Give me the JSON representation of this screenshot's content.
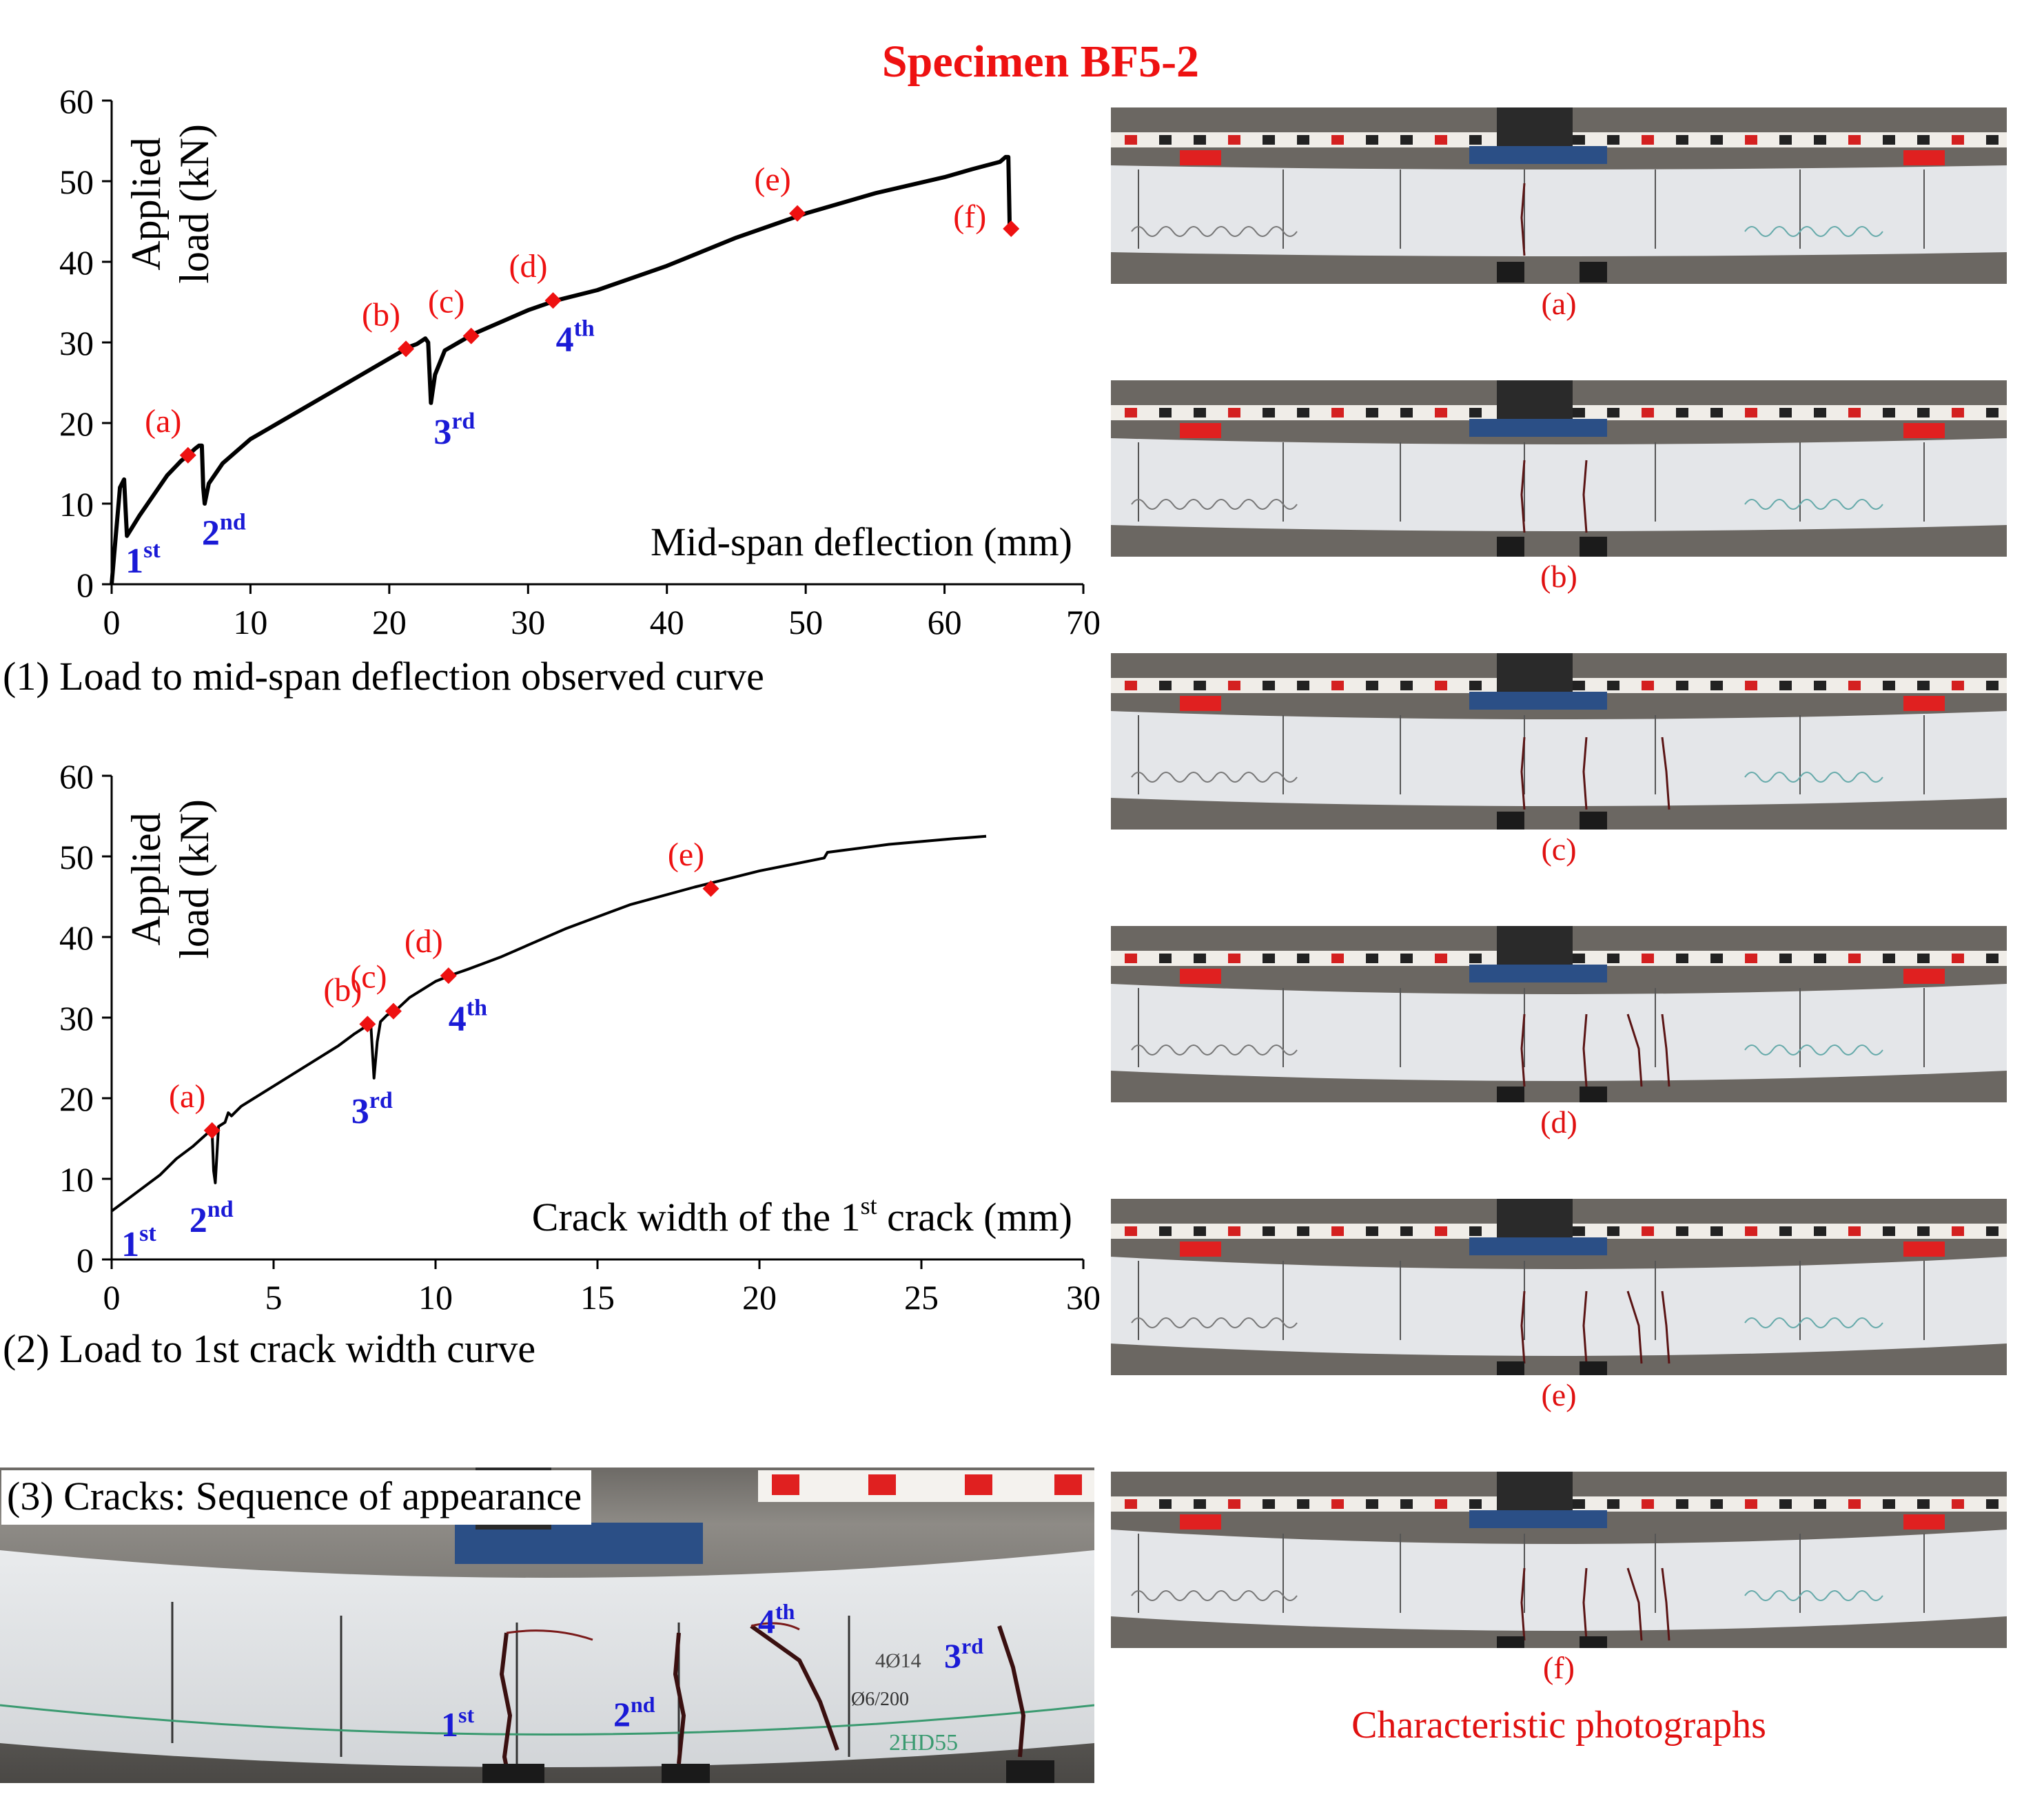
{
  "title": "Specimen BF5-2",
  "colors": {
    "title": "#ee1111",
    "marker": "#ee1111",
    "crack_label": "#1a1ad6",
    "curve": "#000000"
  },
  "chart_data": [
    {
      "type": "line",
      "id": "chart1",
      "caption": "(1) Load to mid-span deflection observed curve",
      "xlabel": "Mid-span deflection (mm)",
      "ylabel": [
        "Applied",
        "load (kN)"
      ],
      "xlim": [
        0,
        70
      ],
      "ylim": [
        0,
        60
      ],
      "xticks": [
        0,
        10,
        20,
        30,
        40,
        50,
        60,
        70
      ],
      "yticks": [
        0,
        10,
        20,
        30,
        40,
        50,
        60
      ],
      "grid": false,
      "series": [
        {
          "x": [
            0,
            0.3,
            0.6,
            0.9,
            1.0,
            1.1,
            2,
            3,
            4,
            5,
            5.5,
            6,
            6.3,
            6.5,
            6.6,
            6.7,
            7,
            8,
            10,
            12,
            14,
            16,
            18,
            20,
            21,
            21.5,
            22,
            22.6,
            22.8,
            23.0,
            23.3,
            24,
            25,
            26,
            28,
            30,
            32,
            35,
            40,
            45,
            50,
            55,
            60,
            62,
            64,
            64.4,
            64.6,
            64.7
          ],
          "y": [
            0,
            6,
            12,
            13,
            9.5,
            6,
            8.5,
            11,
            13.5,
            15.3,
            16,
            16.8,
            17.2,
            17.2,
            12,
            10,
            12.5,
            15,
            18,
            20,
            22,
            24,
            26,
            28,
            29,
            29.5,
            29.8,
            30.5,
            30,
            22.5,
            26,
            29,
            30,
            31,
            32.5,
            34,
            35.2,
            36.5,
            39.5,
            43,
            46,
            48.5,
            50.5,
            51.5,
            52.4,
            53,
            53,
            44
          ]
        }
      ],
      "markers": [
        {
          "label": "(a)",
          "x": 5.5,
          "y": 16
        },
        {
          "label": "(b)",
          "x": 21.2,
          "y": 29.2
        },
        {
          "label": "(c)",
          "x": 25.9,
          "y": 30.8
        },
        {
          "label": "(d)",
          "x": 31.8,
          "y": 35.2
        },
        {
          "label": "(e)",
          "x": 49.4,
          "y": 46
        },
        {
          "label": "(f)",
          "x": 64.8,
          "y": 44.1
        }
      ],
      "crack_labels": [
        {
          "num": "1",
          "sup": "st",
          "x": 1.0,
          "y": 4
        },
        {
          "num": "2",
          "sup": "nd",
          "x": 6.5,
          "y": 7.5
        },
        {
          "num": "3",
          "sup": "rd",
          "x": 23.2,
          "y": 20
        },
        {
          "num": "4",
          "sup": "th",
          "x": 32.0,
          "y": 31.5
        }
      ]
    },
    {
      "type": "line",
      "id": "chart2",
      "caption": "(2) Load to 1st crack width curve",
      "xlabel_pre": "Crack width of the 1",
      "xlabel_sup": "st",
      "xlabel_post": " crack (mm)",
      "ylabel": [
        "Applied",
        "load (kN)"
      ],
      "xlim": [
        0,
        30
      ],
      "ylim": [
        0,
        60
      ],
      "xticks": [
        0,
        5,
        10,
        15,
        20,
        25,
        30
      ],
      "yticks": [
        0,
        10,
        20,
        30,
        40,
        50,
        60
      ],
      "grid": false,
      "series": [
        {
          "x": [
            0,
            0.5,
            1,
            1.5,
            2,
            2.5,
            3.0,
            3.1,
            3.15,
            3.2,
            3.3,
            3.5,
            3.6,
            3.7,
            4,
            5,
            6,
            7,
            7.5,
            8.0,
            8.1,
            8.2,
            8.3,
            8.5,
            8.8,
            9.2,
            10,
            10.5,
            11,
            12,
            14,
            16,
            18,
            20,
            22,
            22.1,
            24,
            26,
            27
          ],
          "y": [
            6,
            7.5,
            9,
            10.5,
            12.5,
            14,
            15.8,
            16.0,
            11,
            9.5,
            16.5,
            17,
            18.2,
            17.8,
            19,
            21.5,
            24,
            26.5,
            28,
            29.3,
            22.5,
            27,
            29.5,
            30.3,
            31,
            32.5,
            34.5,
            35.3,
            36,
            37.5,
            41,
            44,
            46.2,
            48.2,
            49.8,
            50.5,
            51.5,
            52.2,
            52.5
          ]
        }
      ],
      "markers": [
        {
          "label": "(a)",
          "x": 3.1,
          "y": 16
        },
        {
          "label": "(b)",
          "x": 7.9,
          "y": 29.2
        },
        {
          "label": "(c)",
          "x": 8.7,
          "y": 30.8
        },
        {
          "label": "(d)",
          "x": 10.4,
          "y": 35.2
        },
        {
          "label": "(e)",
          "x": 18.5,
          "y": 46
        }
      ],
      "crack_labels": [
        {
          "num": "1",
          "sup": "st",
          "x": 0.3,
          "y": 3
        },
        {
          "num": "2",
          "sup": "nd",
          "x": 2.4,
          "y": 6
        },
        {
          "num": "3",
          "sup": "rd",
          "x": 7.4,
          "y": 19.5
        },
        {
          "num": "4",
          "sup": "th",
          "x": 10.4,
          "y": 31
        }
      ]
    }
  ],
  "photos": {
    "labels": [
      "(a)",
      "(b)",
      "(c)",
      "(d)",
      "(e)",
      "(f)"
    ],
    "caption": "Characteristic photographs"
  },
  "crack_sequence": {
    "caption": "(3) Cracks: Sequence of appearance",
    "labels": [
      {
        "num": "1",
        "sup": "st"
      },
      {
        "num": "2",
        "sup": "nd"
      },
      {
        "num": "4",
        "sup": "th"
      },
      {
        "num": "3",
        "sup": "rd"
      }
    ],
    "beam_text": [
      "4Ø14",
      "Ø6/200",
      "2HD55"
    ]
  }
}
